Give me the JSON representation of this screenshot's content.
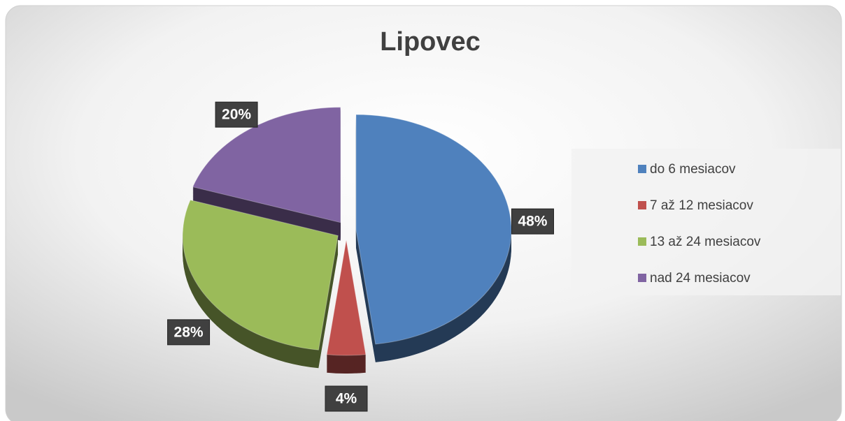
{
  "chart_data": {
    "type": "pie",
    "title": "Lipovec",
    "categories": [
      "do 6 mesiacov",
      "7 až 12 mesiacov",
      "13 až 24 mesiacov",
      "nad 24 mesiacov"
    ],
    "values": [
      48,
      4,
      28,
      20
    ],
    "value_labels": [
      "48%",
      "4%",
      "28%",
      "20%"
    ],
    "colors": [
      "#4f81bd",
      "#c0504d",
      "#9bbb59",
      "#8064a2"
    ],
    "legend": "right"
  }
}
